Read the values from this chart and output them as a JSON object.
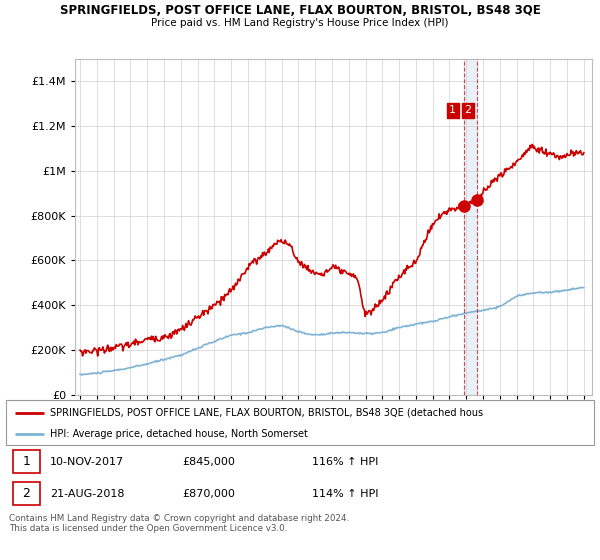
{
  "title1": "SPRINGFIELDS, POST OFFICE LANE, FLAX BOURTON, BRISTOL, BS48 3QE",
  "title2": "Price paid vs. HM Land Registry's House Price Index (HPI)",
  "legend_line1": "SPRINGFIELDS, POST OFFICE LANE, FLAX BOURTON, BRISTOL, BS48 3QE (detached hous",
  "legend_line2": "HPI: Average price, detached house, North Somerset",
  "footnote": "Contains HM Land Registry data © Crown copyright and database right 2024.\nThis data is licensed under the Open Government Licence v3.0.",
  "ylim": [
    0,
    1500000
  ],
  "yticks": [
    0,
    200000,
    400000,
    600000,
    800000,
    1000000,
    1200000,
    1400000
  ],
  "xlim_start": 1994.7,
  "xlim_end": 2025.5,
  "hpi_color": "#7fb3d3",
  "hpi_fill_color": "#ddeef7",
  "price_color": "#cc0000",
  "marker1_x": 2017.86,
  "marker1_y": 845000,
  "marker2_x": 2018.64,
  "marker2_y": 870000,
  "shade_color": "#e8f0f8"
}
